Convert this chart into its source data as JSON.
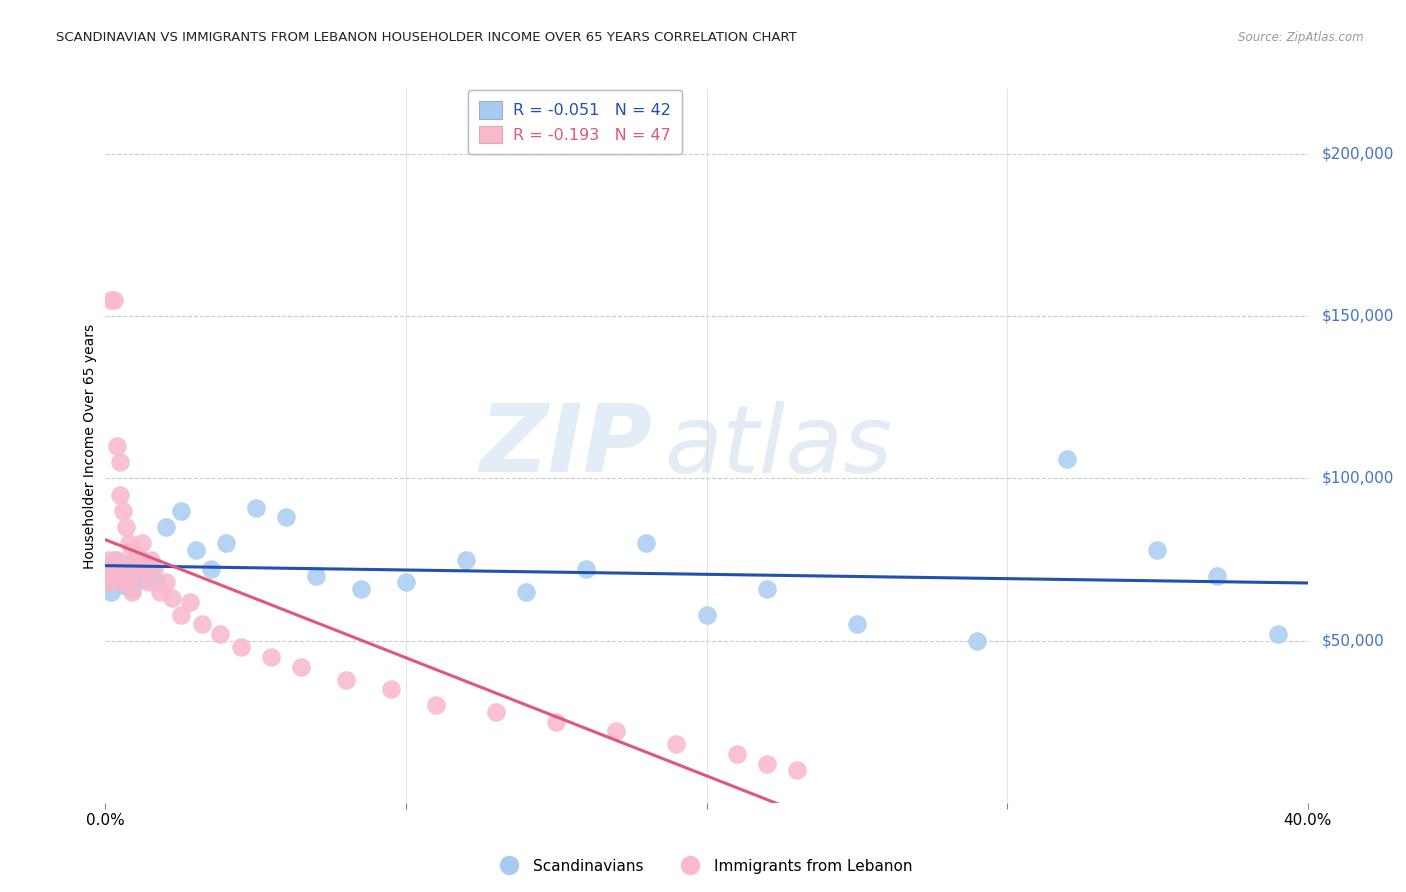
{
  "title": "SCANDINAVIAN VS IMMIGRANTS FROM LEBANON HOUSEHOLDER INCOME OVER 65 YEARS CORRELATION CHART",
  "source": "Source: ZipAtlas.com",
  "ylabel": "Householder Income Over 65 years",
  "y_tick_labels": [
    "$50,000",
    "$100,000",
    "$150,000",
    "$200,000"
  ],
  "y_tick_values": [
    50000,
    100000,
    150000,
    200000
  ],
  "ylim": [
    0,
    220000
  ],
  "xlim": [
    0.0,
    0.4
  ],
  "legend_r_blue": "-0.051",
  "legend_n_blue": "42",
  "legend_r_pink": "-0.193",
  "legend_n_pink": "47",
  "watermark_left": "ZIP",
  "watermark_right": "atlas",
  "legend_label_blue": "Scandinavians",
  "legend_label_pink": "Immigrants from Lebanon",
  "blue_scatter_color": "#A8CCF0",
  "pink_scatter_color": "#F9B8CC",
  "blue_line_color": "#2050B0",
  "pink_line_color": "#E05878",
  "axis_label_color": "#4472C4",
  "title_color": "#222222",
  "background_color": "#FFFFFF",
  "grid_color": "#CCCCCC",
  "scandinavians_x": [
    0.001,
    0.002,
    0.002,
    0.003,
    0.003,
    0.004,
    0.004,
    0.005,
    0.005,
    0.006,
    0.006,
    0.007,
    0.008,
    0.009,
    0.01,
    0.011,
    0.012,
    0.013,
    0.015,
    0.017,
    0.02,
    0.025,
    0.03,
    0.035,
    0.04,
    0.05,
    0.06,
    0.07,
    0.085,
    0.1,
    0.12,
    0.14,
    0.16,
    0.18,
    0.2,
    0.22,
    0.25,
    0.29,
    0.32,
    0.35,
    0.37,
    0.39
  ],
  "scandinavians_y": [
    68000,
    72000,
    65000,
    70000,
    75000,
    69000,
    73000,
    68000,
    71000,
    74000,
    67000,
    70000,
    72000,
    66000,
    73000,
    70000,
    75000,
    69000,
    72000,
    68000,
    85000,
    90000,
    78000,
    72000,
    80000,
    91000,
    88000,
    70000,
    66000,
    68000,
    75000,
    65000,
    72000,
    80000,
    58000,
    66000,
    55000,
    50000,
    106000,
    78000,
    70000,
    52000
  ],
  "lebanon_x": [
    0.001,
    0.001,
    0.002,
    0.002,
    0.003,
    0.003,
    0.004,
    0.004,
    0.005,
    0.005,
    0.005,
    0.006,
    0.006,
    0.007,
    0.007,
    0.008,
    0.008,
    0.009,
    0.009,
    0.01,
    0.01,
    0.011,
    0.012,
    0.013,
    0.014,
    0.015,
    0.016,
    0.018,
    0.02,
    0.022,
    0.025,
    0.028,
    0.032,
    0.038,
    0.045,
    0.055,
    0.065,
    0.08,
    0.095,
    0.11,
    0.13,
    0.15,
    0.17,
    0.19,
    0.21,
    0.22,
    0.23
  ],
  "lebanon_y": [
    75000,
    68000,
    155000,
    70000,
    155000,
    72000,
    110000,
    75000,
    105000,
    95000,
    68000,
    90000,
    72000,
    85000,
    70000,
    80000,
    68000,
    78000,
    65000,
    76000,
    72000,
    75000,
    80000,
    72000,
    68000,
    75000,
    72000,
    65000,
    68000,
    63000,
    58000,
    62000,
    55000,
    52000,
    48000,
    45000,
    42000,
    38000,
    35000,
    30000,
    28000,
    25000,
    22000,
    18000,
    15000,
    12000,
    10000
  ],
  "xtick_minor": [
    0.1,
    0.2,
    0.3
  ]
}
